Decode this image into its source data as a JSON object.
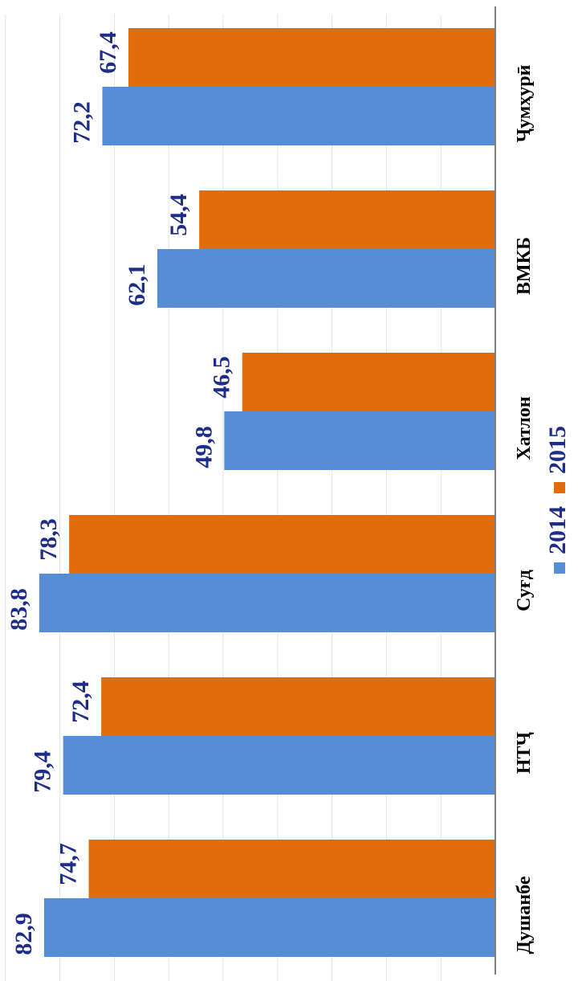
{
  "chart_data": {
    "type": "bar",
    "orientation": "horizontal (rendered rotated 90°)",
    "categories": [
      "Душанбе",
      "НТҶ",
      "Суғд",
      "Хатлон",
      "ВМКБ",
      "Ҷумҳурӣ"
    ],
    "series": [
      {
        "name": "2014",
        "color": "#558ed5",
        "values": [
          82.9,
          79.4,
          83.8,
          49.8,
          62.1,
          72.2
        ],
        "labels": [
          "82,9",
          "79,4",
          "83,8",
          "49,8",
          "62,1",
          "72,2"
        ]
      },
      {
        "name": "2015",
        "color": "#e26b0a",
        "values": [
          74.7,
          72.4,
          78.3,
          46.5,
          54.4,
          67.4
        ],
        "labels": [
          "74,7",
          "72,4",
          "78,3",
          "46,5",
          "54,4",
          "67,4"
        ]
      }
    ],
    "title": "",
    "xlabel": "",
    "ylabel": "",
    "ylim": [
      0,
      90
    ],
    "grid": true,
    "legend_position": "bottom"
  },
  "colors": {
    "value_label": "#1f2d8a",
    "category_label": "#000000",
    "gridline": "#e4e4e4",
    "baseline": "#7f7f7f"
  }
}
